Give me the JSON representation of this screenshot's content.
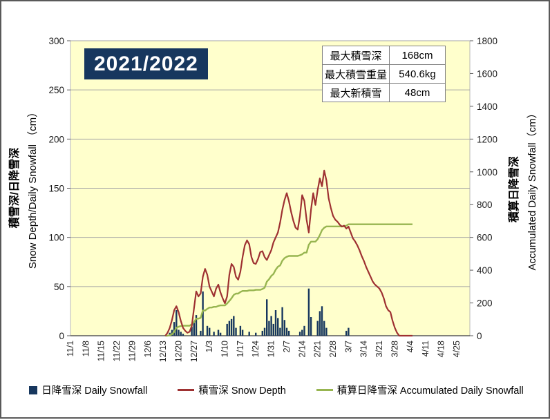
{
  "title": "2021/2022",
  "stats_table": {
    "rows": [
      {
        "label": "最大積雪深",
        "value": "168cm"
      },
      {
        "label": "最大積雪重量",
        "value": "540.6kg"
      },
      {
        "label": "最大新積雪",
        "value": "48cm"
      }
    ]
  },
  "legend": [
    {
      "label": "日降雪深 Daily Snowfall",
      "marker": "square",
      "color": "#17375E"
    },
    {
      "label": "積雪深 Snow Depth",
      "marker": "line",
      "color": "#9E3132"
    },
    {
      "label": "積算日降雪深 Accumulated Daily Snowfall",
      "marker": "line",
      "color": "#97B550"
    }
  ],
  "chart_data": {
    "type": "bar+line",
    "title": "2021/2022",
    "left_axis": {
      "label_ja": "積雪深/日降雪深",
      "label_en": "Snow Depth/Daily Snowfall （cm）",
      "min": 0,
      "max": 300,
      "step": 50
    },
    "right_axis": {
      "label_ja": "積算日降雪深",
      "label_en": "Accumulated Daily Snowfall（cm）",
      "min": 0,
      "max": 1800,
      "step": 200
    },
    "x_ticks": [
      "11/1",
      "11/8",
      "11/15",
      "11/22",
      "11/29",
      "12/6",
      "12/13",
      "12/20",
      "12/27",
      "1/3",
      "1/10",
      "1/17",
      "1/24",
      "1/31",
      "2/7",
      "2/14",
      "2/21",
      "2/28",
      "3/7",
      "3/14",
      "3/21",
      "3/28",
      "4/4",
      "4/11",
      "4/18",
      "4/25"
    ],
    "x_domain_days": 181,
    "grid": "horizontal",
    "legend_position": "bottom",
    "series_names": {
      "bars": "日降雪深 Daily Snowfall",
      "depth": "積雪深 Snow Depth",
      "accumulated": "積算日降雪深 Accumulated Daily Snowfall"
    },
    "dates": [
      "12/14",
      "12/15",
      "12/16",
      "12/17",
      "12/18",
      "12/19",
      "12/20",
      "12/21",
      "12/22",
      "12/23",
      "12/24",
      "12/25",
      "12/26",
      "12/27",
      "12/28",
      "12/29",
      "12/30",
      "12/31",
      "1/1",
      "1/2",
      "1/3",
      "1/4",
      "1/5",
      "1/6",
      "1/7",
      "1/8",
      "1/9",
      "1/10",
      "1/11",
      "1/12",
      "1/13",
      "1/14",
      "1/15",
      "1/16",
      "1/17",
      "1/18",
      "1/19",
      "1/20",
      "1/21",
      "1/22",
      "1/23",
      "1/24",
      "1/25",
      "1/26",
      "1/27",
      "1/28",
      "1/29",
      "1/30",
      "1/31",
      "2/1",
      "2/2",
      "2/3",
      "2/4",
      "2/5",
      "2/6",
      "2/7",
      "2/8",
      "2/9",
      "2/10",
      "2/11",
      "2/12",
      "2/13",
      "2/14",
      "2/15",
      "2/16",
      "2/17",
      "2/18",
      "2/19",
      "2/20",
      "2/21",
      "2/22",
      "2/23",
      "2/24",
      "2/25",
      "2/26",
      "2/27",
      "2/28",
      "3/1",
      "3/2",
      "3/3",
      "3/4",
      "3/5",
      "3/6",
      "3/7",
      "3/8",
      "3/9",
      "3/10",
      "3/11",
      "3/12",
      "3/13",
      "3/14",
      "3/15",
      "3/16",
      "3/17",
      "3/18",
      "3/19",
      "3/20",
      "3/21",
      "3/22",
      "3/23",
      "3/24",
      "3/25",
      "3/26",
      "3/27",
      "3/28",
      "3/29",
      "3/30",
      "3/31",
      "4/1",
      "4/2",
      "4/3",
      "4/4",
      "4/5"
    ],
    "daily_snowfall": [
      0,
      0,
      3,
      6,
      14,
      26,
      6,
      4,
      2,
      0,
      0,
      0,
      9,
      13,
      21,
      0,
      5,
      45,
      0,
      10,
      8,
      0,
      4,
      0,
      6,
      3,
      0,
      0,
      12,
      15,
      17,
      20,
      8,
      0,
      10,
      6,
      0,
      0,
      4,
      0,
      0,
      3,
      0,
      0,
      5,
      8,
      37,
      15,
      20,
      12,
      26,
      18,
      8,
      29,
      16,
      8,
      5,
      0,
      0,
      0,
      0,
      4,
      6,
      10,
      0,
      48,
      19,
      0,
      0,
      15,
      25,
      30,
      15,
      8,
      0,
      0,
      0,
      0,
      0,
      0,
      0,
      0,
      5,
      8,
      0,
      0,
      0,
      0,
      0,
      0,
      0,
      0,
      0,
      0,
      0,
      0,
      0,
      0,
      0,
      0,
      0,
      0,
      0,
      0,
      0,
      0,
      0,
      0,
      0,
      0,
      0,
      0,
      0
    ],
    "snow_depth": [
      0,
      3,
      8,
      16,
      26,
      30,
      24,
      15,
      8,
      5,
      3,
      4,
      10,
      28,
      45,
      40,
      43,
      60,
      68,
      62,
      50,
      45,
      40,
      48,
      52,
      44,
      38,
      33,
      40,
      62,
      73,
      70,
      60,
      57,
      65,
      80,
      92,
      97,
      93,
      80,
      74,
      73,
      78,
      85,
      86,
      80,
      77,
      82,
      87,
      95,
      100,
      105,
      115,
      128,
      138,
      145,
      137,
      126,
      117,
      110,
      108,
      122,
      143,
      137,
      118,
      105,
      128,
      145,
      133,
      148,
      160,
      152,
      168,
      158,
      140,
      130,
      122,
      118,
      116,
      113,
      111,
      112,
      109,
      111,
      105,
      99,
      96,
      92,
      87,
      81,
      76,
      70,
      65,
      60,
      55,
      52,
      50,
      48,
      44,
      38,
      30,
      26,
      24,
      15,
      8,
      3,
      0,
      0,
      0,
      0,
      0,
      0,
      0
    ],
    "accumulated": [
      0,
      0,
      3,
      9,
      23,
      49,
      55,
      59,
      61,
      61,
      61,
      61,
      70,
      83,
      104,
      104,
      109,
      154,
      154,
      164,
      172,
      172,
      176,
      176,
      182,
      185,
      185,
      185,
      197,
      212,
      229,
      249,
      257,
      257,
      267,
      273,
      273,
      273,
      277,
      277,
      277,
      280,
      280,
      280,
      285,
      293,
      330,
      345,
      365,
      377,
      403,
      421,
      429,
      458,
      474,
      482,
      487,
      487,
      487,
      487,
      487,
      491,
      497,
      507,
      507,
      555,
      574,
      574,
      574,
      589,
      614,
      644,
      659,
      667,
      667,
      667,
      667,
      667,
      667,
      667,
      667,
      667,
      672,
      680,
      680,
      680,
      680,
      680,
      680,
      680,
      680,
      680,
      680,
      680,
      680,
      680,
      680,
      680,
      680,
      680,
      680,
      680,
      680,
      680,
      680,
      680,
      680,
      680,
      680,
      680,
      680,
      680,
      680
    ],
    "max_values": {
      "max_snow_depth": "168cm",
      "max_snow_weight": "540.6kg",
      "max_new_snowfall": "48cm"
    },
    "colors": {
      "bar": "#17375E",
      "depth": "#9E3132",
      "accumulated": "#97B550",
      "plot_bg": "#FFFFCC",
      "grid": "#A6A6A6",
      "axis": "#595959",
      "tick_text": "#262626"
    }
  }
}
